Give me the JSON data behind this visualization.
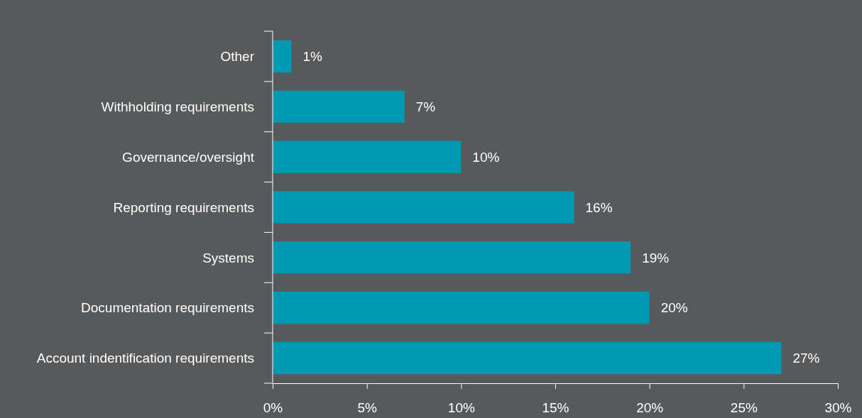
{
  "chart_data": {
    "type": "bar",
    "orientation": "horizontal",
    "categories": [
      "Other",
      "Withholding requirements",
      "Governance/oversight",
      "Reporting requirements",
      "Systems",
      "Documentation requirements",
      "Account indentification requirements"
    ],
    "values": [
      1,
      7,
      10,
      16,
      19,
      20,
      27
    ],
    "value_labels": [
      "1%",
      "7%",
      "10%",
      "16%",
      "19%",
      "20%",
      "27%"
    ],
    "color": "#0099b4",
    "xlim": [
      0,
      30
    ],
    "xticks": [
      {
        "value": 0,
        "label": "0%"
      },
      {
        "value": 5,
        "label": "5%"
      },
      {
        "value": 10,
        "label": "10%"
      },
      {
        "value": 15,
        "label": "15%"
      },
      {
        "value": 20,
        "label": "20%"
      },
      {
        "value": 25,
        "label": "25%"
      },
      {
        "value": 30,
        "label": "30%"
      }
    ],
    "tick_labels": "xy"
  }
}
